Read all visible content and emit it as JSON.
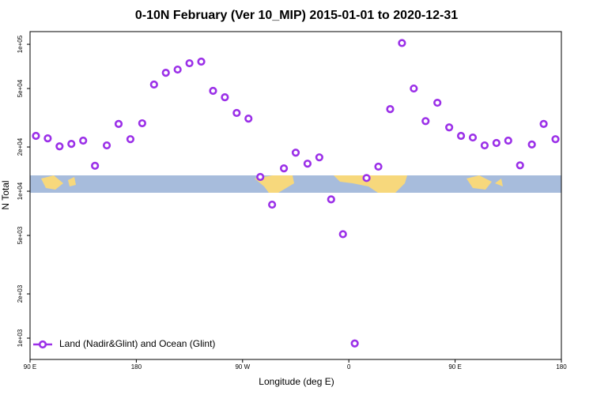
{
  "chart_data": {
    "type": "scatter",
    "title": "0-10N February (Ver 10_MIP)   2015-01-01 to 2020-12-31",
    "x_label": "Longitude (deg E)",
    "y_label": "N Total",
    "log_y": true,
    "xlim": [
      90,
      540
    ],
    "xticks": [
      {
        "value": 90,
        "label": "90 E"
      },
      180,
      {
        "value": 270,
        "label": "90 W"
      },
      {
        "value": 360,
        "label": "0"
      },
      {
        "value": 450,
        "label": "90 E"
      },
      {
        "value": 540,
        "label": "180"
      }
    ],
    "ylim": [
      716,
      122000
    ],
    "yticks": [
      {
        "value": 1000,
        "label": "1e+03"
      },
      {
        "value": 2000,
        "label": "2e+03"
      },
      {
        "value": 5000,
        "label": "5e+03"
      },
      {
        "value": 10000,
        "label": "1e+04"
      },
      {
        "value": 20000,
        "label": "2e+04"
      },
      {
        "value": 50000,
        "label": "5e+04"
      },
      {
        "value": 100000,
        "label": "1e+05"
      }
    ],
    "legend": "bottom-left",
    "series": [
      {
        "name": "Land (Nadir&Glint) and Ocean (Glint)",
        "color": "#9b30e8",
        "x": [
          95,
          105,
          115,
          125,
          135,
          145,
          155,
          165,
          175,
          185,
          195,
          205,
          215,
          225,
          235,
          245,
          255,
          265,
          275,
          285,
          295,
          305,
          315,
          325,
          335,
          345,
          355,
          365,
          375,
          385,
          395,
          405,
          415,
          425,
          435,
          445,
          455,
          465,
          475,
          485,
          495,
          505,
          515,
          525,
          535
        ],
        "values": [
          23800,
          22900,
          20200,
          21000,
          22100,
          14900,
          20500,
          28700,
          22600,
          29000,
          53200,
          64000,
          67300,
          74300,
          76200,
          48200,
          43600,
          34100,
          31200,
          12500,
          8100,
          14300,
          18300,
          15400,
          17000,
          8800,
          5100,
          920,
          12300,
          14700,
          36200,
          102000,
          50000,
          30000,
          40000,
          27200,
          23800,
          23200,
          20500,
          21300,
          22100,
          15000,
          20800,
          28700,
          22600
        ]
      }
    ]
  }
}
